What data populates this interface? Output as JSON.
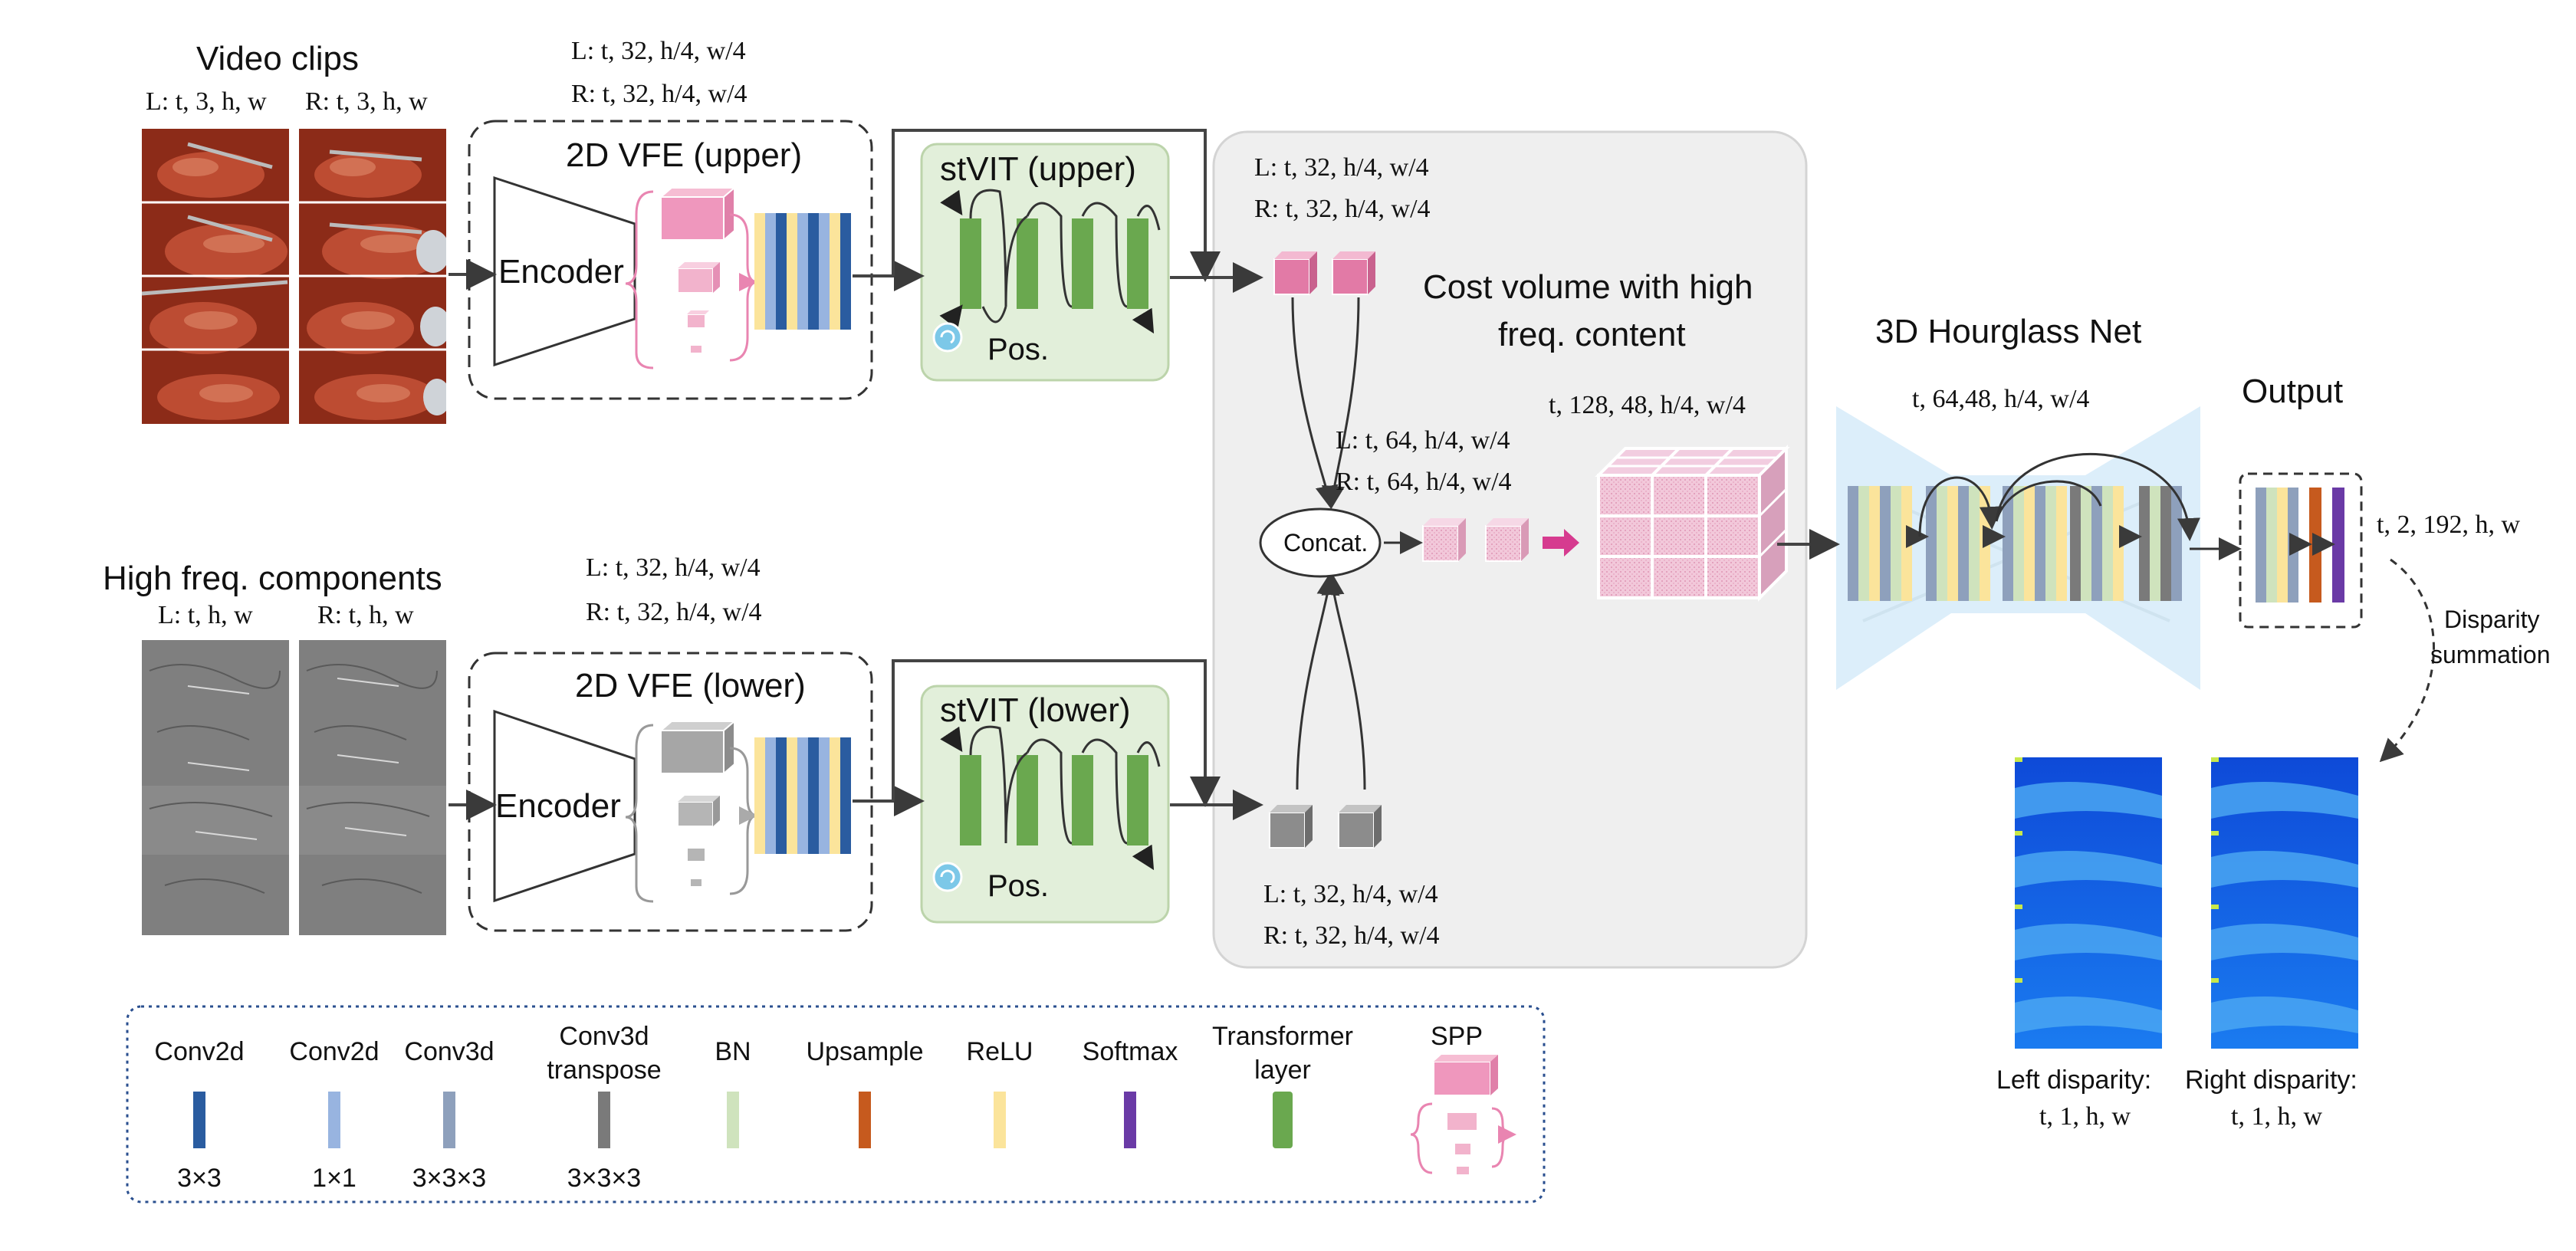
{
  "video": {
    "title": "Video clips",
    "left_dims": "L: t, 3, h, w",
    "right_dims": "R: t, 3, h, w"
  },
  "highfreq": {
    "title": "High freq. components",
    "left_dims": "L: t, h, w",
    "right_dims": "R: t, h, w"
  },
  "vfe_upper": {
    "title": "2D VFE (upper)",
    "encoder": "Encoder",
    "dims_l": "L: t, 32, h/4, w/4",
    "dims_r": "R: t, 32, h/4, w/4"
  },
  "vfe_lower": {
    "title": "2D VFE (lower)",
    "encoder": "Encoder",
    "dims_l": "L: t, 32, h/4, w/4",
    "dims_r": "R: t, 32, h/4, w/4"
  },
  "stvit_upper": {
    "title": "stVIT (upper)",
    "pos": "Pos."
  },
  "stvit_lower": {
    "title": "stVIT (lower)",
    "pos": "Pos."
  },
  "cost": {
    "title_line1": "Cost volume with high",
    "title_line2": "freq. content",
    "top_l": "L: t, 32, h/4, w/4",
    "top_r": "R: t, 32, h/4, w/4",
    "mid_l": "L: t, 64, h/4, w/4",
    "mid_r": "R: t, 64, h/4, w/4",
    "bot_l": "L: t, 32, h/4, w/4",
    "bot_r": "R: t, 32, h/4, w/4",
    "concat": "Concat.",
    "volume_dims": "t, 128, 48, h/4, w/4"
  },
  "hourglass": {
    "title": "3D Hourglass Net",
    "dims": "t, 64,48, h/4, w/4"
  },
  "output": {
    "title": "Output",
    "dims": "t, 2, 192, h, w",
    "summation_line1": "Disparity",
    "summation_line2": "summation"
  },
  "disparity": {
    "left_line1": "Left disparity:",
    "left_line2": "t, 1, h, w",
    "right_line1": "Right disparity:",
    "right_line2": "t, 1, h, w"
  },
  "legend": {
    "items": [
      {
        "label": "Conv2d",
        "kernel": "3×3",
        "color": "#2a5ca0"
      },
      {
        "label": "Conv2d",
        "kernel": "1×1",
        "color": "#98b4e0"
      },
      {
        "label": "Conv3d",
        "kernel": "3×3×3",
        "color": "#8ea0bc"
      },
      {
        "label": "Conv3d\ntranspose",
        "kernel": "3×3×3",
        "color": "#7a7a7a"
      },
      {
        "label": "BN",
        "kernel": "",
        "color": "#cfe3bd"
      },
      {
        "label": "Upsample",
        "kernel": "",
        "color": "#c65a1e"
      },
      {
        "label": "ReLU",
        "kernel": "",
        "color": "#fbe49b"
      },
      {
        "label": "Softmax",
        "kernel": "",
        "color": "#6a3aa6"
      },
      {
        "label": "Transformer\nlayer",
        "kernel": "",
        "color": "#6aa84f"
      },
      {
        "label": "SPP",
        "kernel": "",
        "color": "#ef97bd"
      }
    ]
  },
  "colors": {
    "conv2d_3x3": "#2a5ca0",
    "conv2d_1x1": "#98b4e0",
    "conv3d": "#8ea0bc",
    "conv3d_transpose": "#7a7a7a",
    "bn": "#cfe3bd",
    "upsample": "#c65a1e",
    "relu": "#fbe49b",
    "softmax": "#6a3aa6",
    "transformer": "#6aa84f",
    "spp": "#ef97bd",
    "gray_panel": "#efefef",
    "green_panel": "#e2efda",
    "hourglass": "#dceefa"
  }
}
